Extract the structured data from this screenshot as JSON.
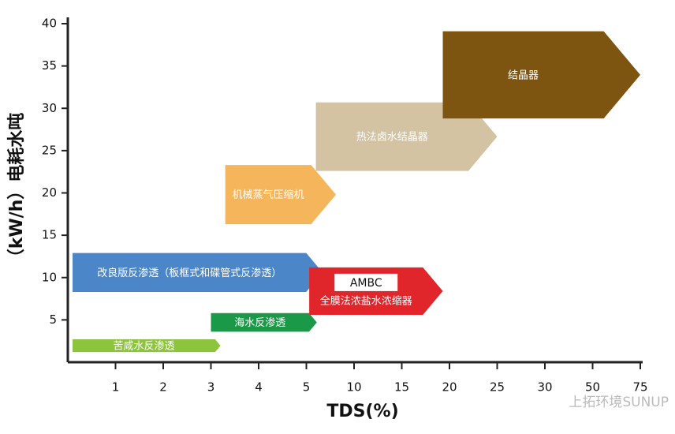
{
  "chart_data": {
    "type": "range-arrow",
    "y_label": "（kW/h）电耗水吨",
    "x_label": "TDS(%)",
    "watermark": "上拓环境SUNUP",
    "xlim": [
      0,
      75
    ],
    "xticks": [
      1,
      2,
      3,
      4,
      5,
      10,
      15,
      20,
      25,
      30,
      50,
      75
    ],
    "ylim": [
      0,
      40
    ],
    "yticks": [
      5,
      10,
      15,
      20,
      25,
      30,
      35,
      40
    ],
    "series": [
      {
        "name": "苦咸水反渗透",
        "color": "#8cc43c",
        "x": [
          0.1,
          3.2
        ],
        "y": [
          1.2,
          2.7
        ]
      },
      {
        "name": "海水反渗透",
        "color": "#1a9a48",
        "x": [
          3.0,
          6.1
        ],
        "y": [
          3.6,
          5.8
        ]
      },
      {
        "name": "改良版反渗透（板框式和碟管式反渗透）",
        "color": "#4a86c8",
        "x": [
          0.1,
          6.7
        ],
        "y": [
          8.3,
          12.9
        ]
      },
      {
        "name": "全膜法浓盐水浓缩器",
        "tag": "AMBC",
        "color": "#e0262a",
        "x": [
          5.3,
          19.3
        ],
        "y": [
          5.6,
          11.2
        ]
      },
      {
        "name": "机械蒸气压缩机",
        "color": "#f5b55b",
        "x": [
          3.3,
          8.1
        ],
        "y": [
          16.3,
          23.3
        ]
      },
      {
        "name": "热法卤水结晶器",
        "color": "#d3c3a3",
        "x": [
          6.0,
          25
        ],
        "y": [
          22.6,
          30.7
        ]
      },
      {
        "name": "结晶器",
        "color": "#7d5410",
        "x": [
          19.3,
          75
        ],
        "y": [
          28.8,
          39.1
        ]
      }
    ]
  }
}
